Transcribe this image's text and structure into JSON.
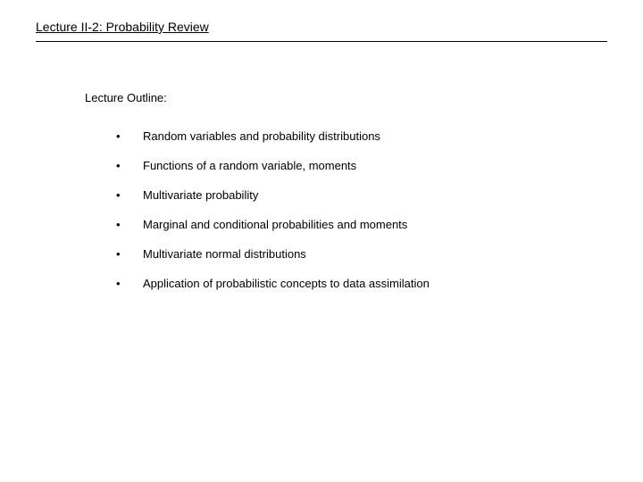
{
  "title": "Lecture II-2: Probability Review",
  "outline_label": "Lecture Outline:",
  "items": [
    "Random variables and probability distributions",
    "Functions of a random variable, moments",
    "Multivariate probability",
    "Marginal and conditional probabilities and moments",
    "Multivariate normal distributions",
    "Application of probabilistic concepts to data assimilation"
  ],
  "colors": {
    "background": "#ffffff",
    "text": "#000000",
    "rule": "#000000"
  },
  "typography": {
    "font_family": "Verdana, Geneva, sans-serif",
    "title_fontsize": 14,
    "body_fontsize": 13
  }
}
